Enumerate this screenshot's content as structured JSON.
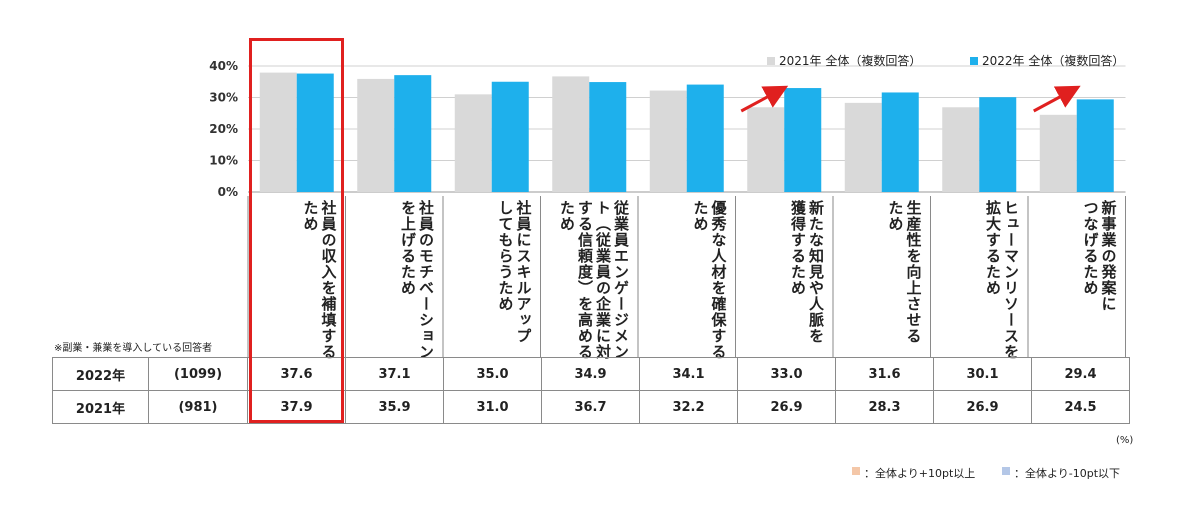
{
  "chart_data": {
    "type": "bar",
    "categories": [
      "社員の収入を補填するため",
      "社員のモチベーションを上げるため",
      "社員にスキルアップしてもらうため",
      "従業員エンゲージメント（従業員の企業に対する信頼度）を高めるため",
      "優秀な人材を確保するため",
      "新たな知見や人脈を獲得するため",
      "生産性を向上させるため",
      "ヒューマンリソースを拡大するため",
      "新事業の発案につなげるため"
    ],
    "category_lines": [
      [
        "社員の収入を補填する",
        "ため"
      ],
      [
        "社員のモチベーション",
        "を上げるため"
      ],
      [
        "社員にスキルアップ",
        "してもらうため"
      ],
      [
        "従業員エンゲージメン",
        "ト（従業員の企業に対",
        "する信頼度）を高める",
        "ため"
      ],
      [
        "優秀な人材を確保する",
        "ため"
      ],
      [
        "新たな知見や人脈を",
        "獲得するため"
      ],
      [
        "生産性を向上させる",
        "ため"
      ],
      [
        "ヒューマンリソースを",
        "拡大するため"
      ],
      [
        "新事業の発案に",
        "つなげるため"
      ]
    ],
    "series": [
      {
        "name": "2021年 全体（複数回答）",
        "values": [
          37.9,
          35.9,
          31.0,
          36.7,
          32.2,
          26.9,
          28.3,
          26.9,
          24.5
        ],
        "color": "#d9d9d9"
      },
      {
        "name": "2022年 全体（複数回答）",
        "values": [
          37.6,
          37.1,
          35.0,
          34.9,
          34.1,
          33.0,
          31.6,
          30.1,
          29.4
        ],
        "color": "#1eb0ec"
      }
    ],
    "y_ticks": [
      "0%",
      "10%",
      "20%",
      "30%",
      "40%"
    ],
    "ylim": [
      0,
      40
    ],
    "grid": true,
    "legend": "top-right",
    "highlight_category_index": 0,
    "arrow_category_indices": [
      5,
      8
    ],
    "highlight_color": "#e0201f"
  },
  "table": {
    "rows": [
      {
        "year": "2022年",
        "n": "(1099)",
        "values": [
          "37.6",
          "37.1",
          "35.0",
          "34.9",
          "34.1",
          "33.0",
          "31.6",
          "30.1",
          "29.4"
        ]
      },
      {
        "year": "2021年",
        "n": "(981)",
        "values": [
          "37.9",
          "35.9",
          "31.0",
          "36.7",
          "32.2",
          "26.9",
          "28.3",
          "26.9",
          "24.5"
        ]
      }
    ]
  },
  "notes": {
    "respondent": "※副業・兼業を導入している回答者",
    "unit": "(%)",
    "above": "：全体より+10pt以上",
    "below": "：全体より-10pt以下",
    "above_color": "#f4c7a8",
    "below_color": "#b4c7e7"
  }
}
